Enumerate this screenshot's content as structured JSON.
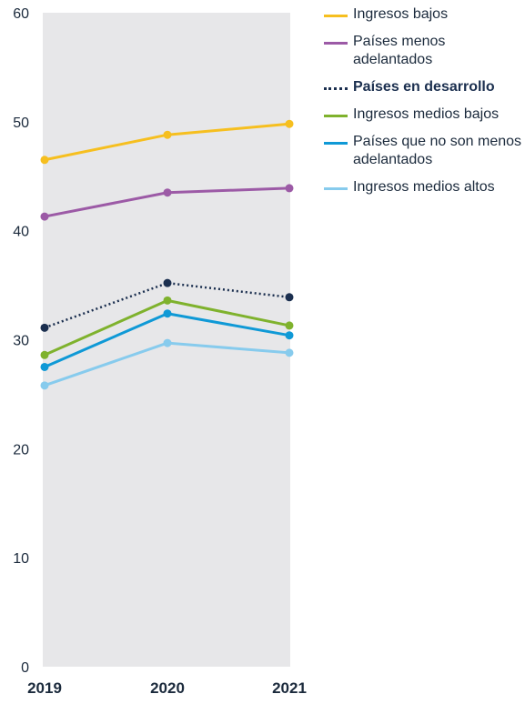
{
  "chart_data": {
    "type": "line",
    "categories": [
      "2019",
      "2020",
      "2021"
    ],
    "ylim": [
      0,
      60
    ],
    "yticks": [
      0,
      10,
      20,
      30,
      40,
      50,
      60
    ],
    "grid": false,
    "legend_position": "top-right",
    "plot_background": "#e7e7e9",
    "series": [
      {
        "name": "Ingresos bajos",
        "values": [
          46.5,
          48.8,
          49.8
        ],
        "color": "#f6bf1f",
        "style": "solid",
        "bold": false
      },
      {
        "name": "Países menos adelantados",
        "values": [
          41.3,
          43.5,
          43.9
        ],
        "color": "#9c5aa6",
        "style": "solid",
        "bold": false
      },
      {
        "name": "Países en desarrollo",
        "values": [
          31.1,
          35.2,
          33.9
        ],
        "color": "#1b2f4f",
        "style": "dotted",
        "bold": true
      },
      {
        "name": "Ingresos medios bajos",
        "values": [
          28.6,
          33.6,
          31.3
        ],
        "color": "#7fb22d",
        "style": "solid",
        "bold": false
      },
      {
        "name": "Países que no son menos adelantados",
        "values": [
          27.5,
          32.4,
          30.4
        ],
        "color": "#0f99d6",
        "style": "solid",
        "bold": false
      },
      {
        "name": "Ingresos medios altos",
        "values": [
          25.8,
          29.7,
          28.8
        ],
        "color": "#87cbed",
        "style": "solid",
        "bold": false
      }
    ]
  }
}
